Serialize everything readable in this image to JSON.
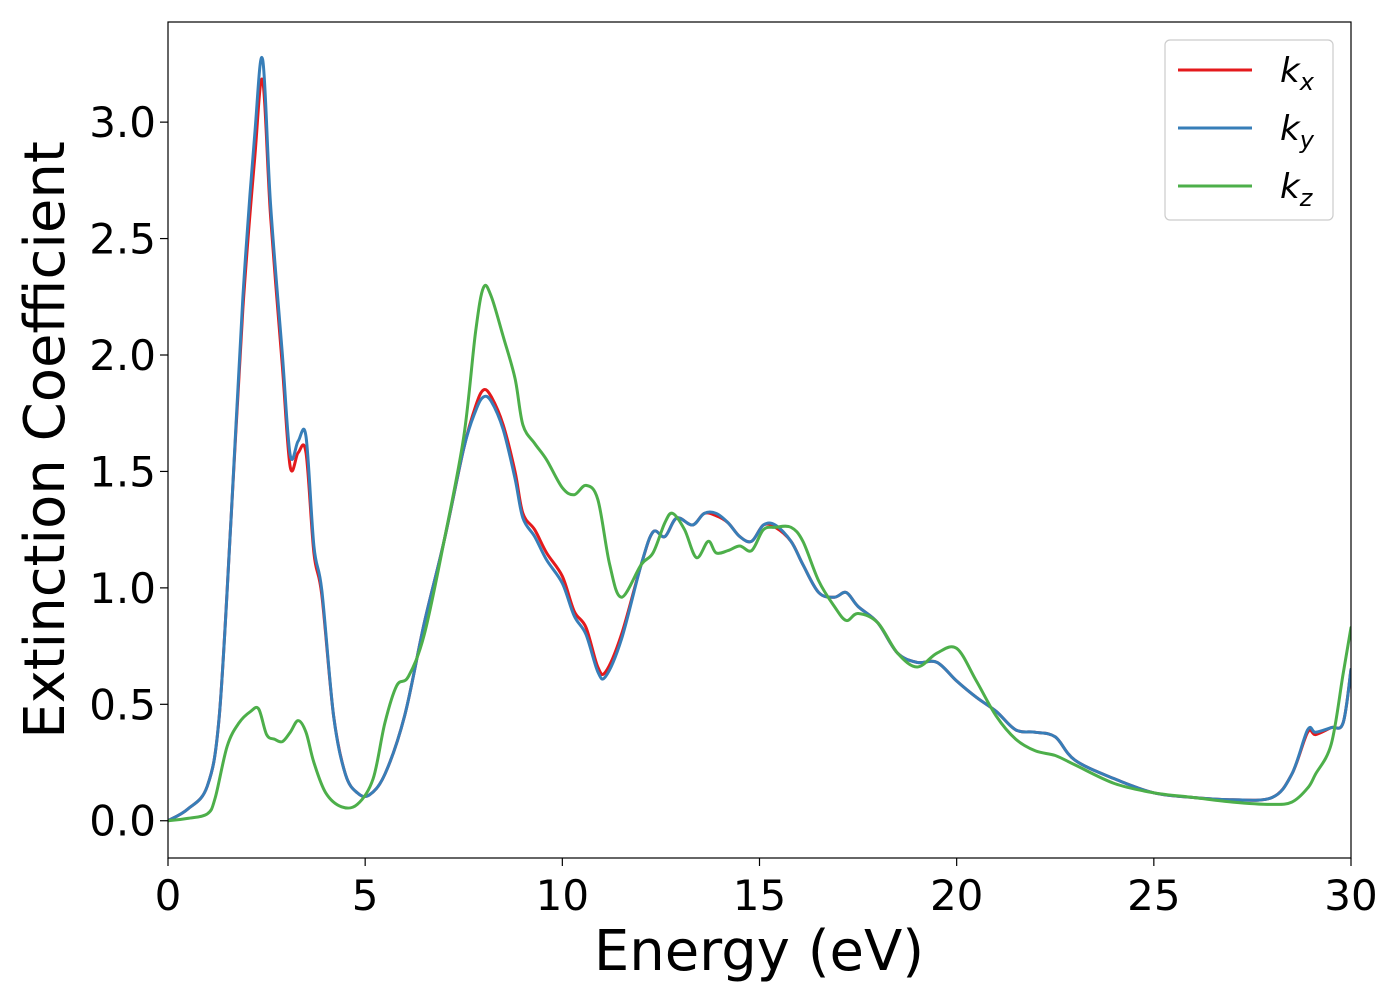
{
  "chart_data": {
    "type": "line",
    "xlabel": "Energy (eV)",
    "ylabel": "Extinction Coefficient",
    "xlim": [
      0,
      30
    ],
    "ylim": [
      -0.16,
      3.43
    ],
    "xticks": [
      0,
      5,
      10,
      15,
      20,
      25,
      30
    ],
    "xtick_labels": [
      "0",
      "5",
      "10",
      "15",
      "20",
      "25",
      "30"
    ],
    "yticks": [
      0.0,
      0.5,
      1.0,
      1.5,
      2.0,
      2.5,
      3.0
    ],
    "ytick_labels": [
      "0.0",
      "0.5",
      "1.0",
      "1.5",
      "2.0",
      "2.5",
      "3.0"
    ],
    "grid": false,
    "legend_position": "top-right",
    "series": [
      {
        "name": "k",
        "subscript": "x",
        "color": "#e41a1c",
        "x": [
          0,
          0.5,
          1,
          1.3,
          1.6,
          1.9,
          2.2,
          2.4,
          2.6,
          2.9,
          3.1,
          3.3,
          3.5,
          3.7,
          3.9,
          4.2,
          4.5,
          4.8,
          5.1,
          5.5,
          6,
          6.5,
          7,
          7.5,
          7.8,
          8,
          8.2,
          8.5,
          8.8,
          9,
          9.3,
          9.6,
          10,
          10.3,
          10.6,
          10.9,
          11.1,
          11.5,
          12,
          12.3,
          12.6,
          12.9,
          13.3,
          13.6,
          13.9,
          14.2,
          14.5,
          14.8,
          15.1,
          15.4,
          15.8,
          16.1,
          16.5,
          16.9,
          17.2,
          17.5,
          18,
          18.5,
          19,
          19.5,
          20,
          20.5,
          21,
          21.5,
          22,
          22.5,
          23,
          24,
          25,
          26,
          27,
          28,
          28.5,
          28.9,
          29.1,
          29.5,
          29.8,
          30
        ],
        "y": [
          0.0,
          0.05,
          0.15,
          0.45,
          1.3,
          2.2,
          2.85,
          3.18,
          2.6,
          1.95,
          1.52,
          1.58,
          1.58,
          1.15,
          0.97,
          0.45,
          0.2,
          0.12,
          0.11,
          0.2,
          0.45,
          0.85,
          1.2,
          1.6,
          1.78,
          1.85,
          1.82,
          1.7,
          1.5,
          1.32,
          1.25,
          1.15,
          1.05,
          0.9,
          0.83,
          0.66,
          0.64,
          0.8,
          1.1,
          1.24,
          1.22,
          1.3,
          1.27,
          1.32,
          1.31,
          1.28,
          1.22,
          1.2,
          1.27,
          1.26,
          1.2,
          1.1,
          0.98,
          0.96,
          0.98,
          0.92,
          0.85,
          0.72,
          0.68,
          0.68,
          0.6,
          0.53,
          0.47,
          0.39,
          0.38,
          0.36,
          0.26,
          0.18,
          0.12,
          0.1,
          0.09,
          0.1,
          0.2,
          0.38,
          0.37,
          0.4,
          0.42,
          0.65
        ]
      },
      {
        "name": "k",
        "subscript": "y",
        "color": "#377eb8",
        "x": [
          0,
          0.5,
          1,
          1.3,
          1.6,
          1.9,
          2.2,
          2.4,
          2.6,
          2.9,
          3.1,
          3.3,
          3.5,
          3.7,
          3.9,
          4.2,
          4.5,
          4.8,
          5.1,
          5.5,
          6,
          6.5,
          7,
          7.5,
          7.8,
          8,
          8.2,
          8.5,
          8.8,
          9,
          9.3,
          9.6,
          10,
          10.3,
          10.6,
          10.9,
          11.1,
          11.5,
          12,
          12.3,
          12.6,
          12.9,
          13.3,
          13.6,
          13.9,
          14.2,
          14.5,
          14.8,
          15.1,
          15.4,
          15.8,
          16.1,
          16.5,
          16.9,
          17.2,
          17.5,
          18,
          18.5,
          19,
          19.5,
          20,
          20.5,
          21,
          21.5,
          22,
          22.5,
          23,
          24,
          25,
          26,
          27,
          28,
          28.5,
          28.9,
          29.1,
          29.5,
          29.8,
          30
        ],
        "y": [
          0.0,
          0.05,
          0.15,
          0.45,
          1.3,
          2.25,
          2.95,
          3.27,
          2.65,
          2.0,
          1.57,
          1.63,
          1.65,
          1.18,
          0.99,
          0.45,
          0.2,
          0.12,
          0.11,
          0.2,
          0.45,
          0.85,
          1.2,
          1.6,
          1.76,
          1.82,
          1.8,
          1.68,
          1.47,
          1.3,
          1.22,
          1.12,
          1.02,
          0.88,
          0.8,
          0.64,
          0.62,
          0.78,
          1.1,
          1.24,
          1.22,
          1.3,
          1.27,
          1.32,
          1.32,
          1.28,
          1.22,
          1.2,
          1.27,
          1.27,
          1.2,
          1.1,
          0.98,
          0.96,
          0.98,
          0.92,
          0.85,
          0.72,
          0.68,
          0.68,
          0.6,
          0.53,
          0.47,
          0.39,
          0.38,
          0.36,
          0.26,
          0.18,
          0.12,
          0.1,
          0.09,
          0.1,
          0.2,
          0.39,
          0.38,
          0.4,
          0.42,
          0.65
        ]
      },
      {
        "name": "k",
        "subscript": "z",
        "color": "#4daf4a",
        "x": [
          0,
          0.5,
          1,
          1.2,
          1.5,
          1.8,
          2.1,
          2.3,
          2.5,
          2.7,
          2.9,
          3.1,
          3.3,
          3.5,
          3.7,
          4.0,
          4.4,
          4.8,
          5.2,
          5.5,
          5.8,
          6.1,
          6.5,
          7,
          7.5,
          7.8,
          8,
          8.2,
          8.5,
          8.8,
          9,
          9.3,
          9.6,
          10,
          10.3,
          10.6,
          10.9,
          11.2,
          11.5,
          12,
          12.3,
          12.6,
          12.8,
          13.1,
          13.4,
          13.7,
          13.9,
          14.2,
          14.5,
          14.8,
          15.1,
          15.4,
          15.8,
          16.1,
          16.5,
          16.9,
          17.2,
          17.5,
          18,
          18.5,
          19,
          19.5,
          20,
          20.5,
          21,
          21.5,
          22,
          22.5,
          23,
          24,
          25,
          26,
          27,
          28,
          28.5,
          28.9,
          29.1,
          29.5,
          29.8,
          30
        ],
        "y": [
          0.0,
          0.01,
          0.03,
          0.1,
          0.32,
          0.42,
          0.47,
          0.48,
          0.37,
          0.35,
          0.34,
          0.38,
          0.43,
          0.38,
          0.25,
          0.12,
          0.06,
          0.07,
          0.18,
          0.42,
          0.58,
          0.62,
          0.8,
          1.2,
          1.65,
          2.1,
          2.29,
          2.25,
          2.08,
          1.9,
          1.7,
          1.62,
          1.55,
          1.43,
          1.4,
          1.44,
          1.38,
          1.1,
          0.96,
          1.1,
          1.15,
          1.28,
          1.32,
          1.25,
          1.13,
          1.2,
          1.15,
          1.16,
          1.18,
          1.16,
          1.25,
          1.26,
          1.26,
          1.2,
          1.03,
          0.92,
          0.86,
          0.89,
          0.85,
          0.72,
          0.66,
          0.72,
          0.74,
          0.6,
          0.45,
          0.35,
          0.3,
          0.28,
          0.24,
          0.16,
          0.12,
          0.1,
          0.08,
          0.07,
          0.08,
          0.14,
          0.2,
          0.33,
          0.63,
          0.83
        ]
      }
    ]
  }
}
